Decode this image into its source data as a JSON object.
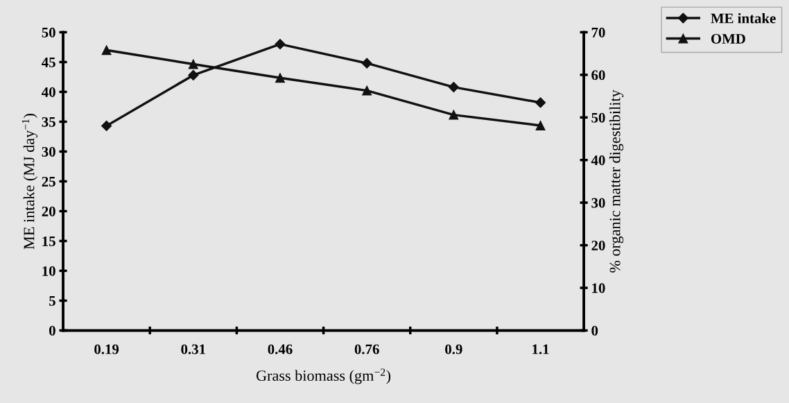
{
  "chart_data": {
    "type": "line",
    "xlabel": "Grass biomass (gm$^{−2}$)",
    "ylabel": "ME intake (MJ day$^{−1}$)",
    "y2label": "% organic matter digestibility",
    "categories": [
      "0.19",
      "0.31",
      "0.46",
      "0.76",
      "0.9",
      "1.1"
    ],
    "series": [
      {
        "name": "ME intake",
        "color": "#111111",
        "marker": "diamond",
        "values": [
          34.3,
          42.8,
          48.0,
          44.8,
          40.8,
          38.2
        ]
      },
      {
        "name": "OMD",
        "color": "#111111",
        "marker": "triangle",
        "axis": "y2",
        "values": [
          65.8,
          62.5,
          59.3,
          56.3,
          50.6,
          48.1
        ]
      }
    ],
    "ylim": [
      0,
      50
    ],
    "yticks": [
      0,
      5,
      10,
      15,
      20,
      25,
      30,
      35,
      40,
      45,
      50
    ],
    "y2lim": [
      0,
      70
    ],
    "y2ticks": [
      0,
      10,
      20,
      30,
      40,
      50,
      60,
      70
    ],
    "grid": false,
    "legend": "top right",
    "line_style": "solid"
  }
}
